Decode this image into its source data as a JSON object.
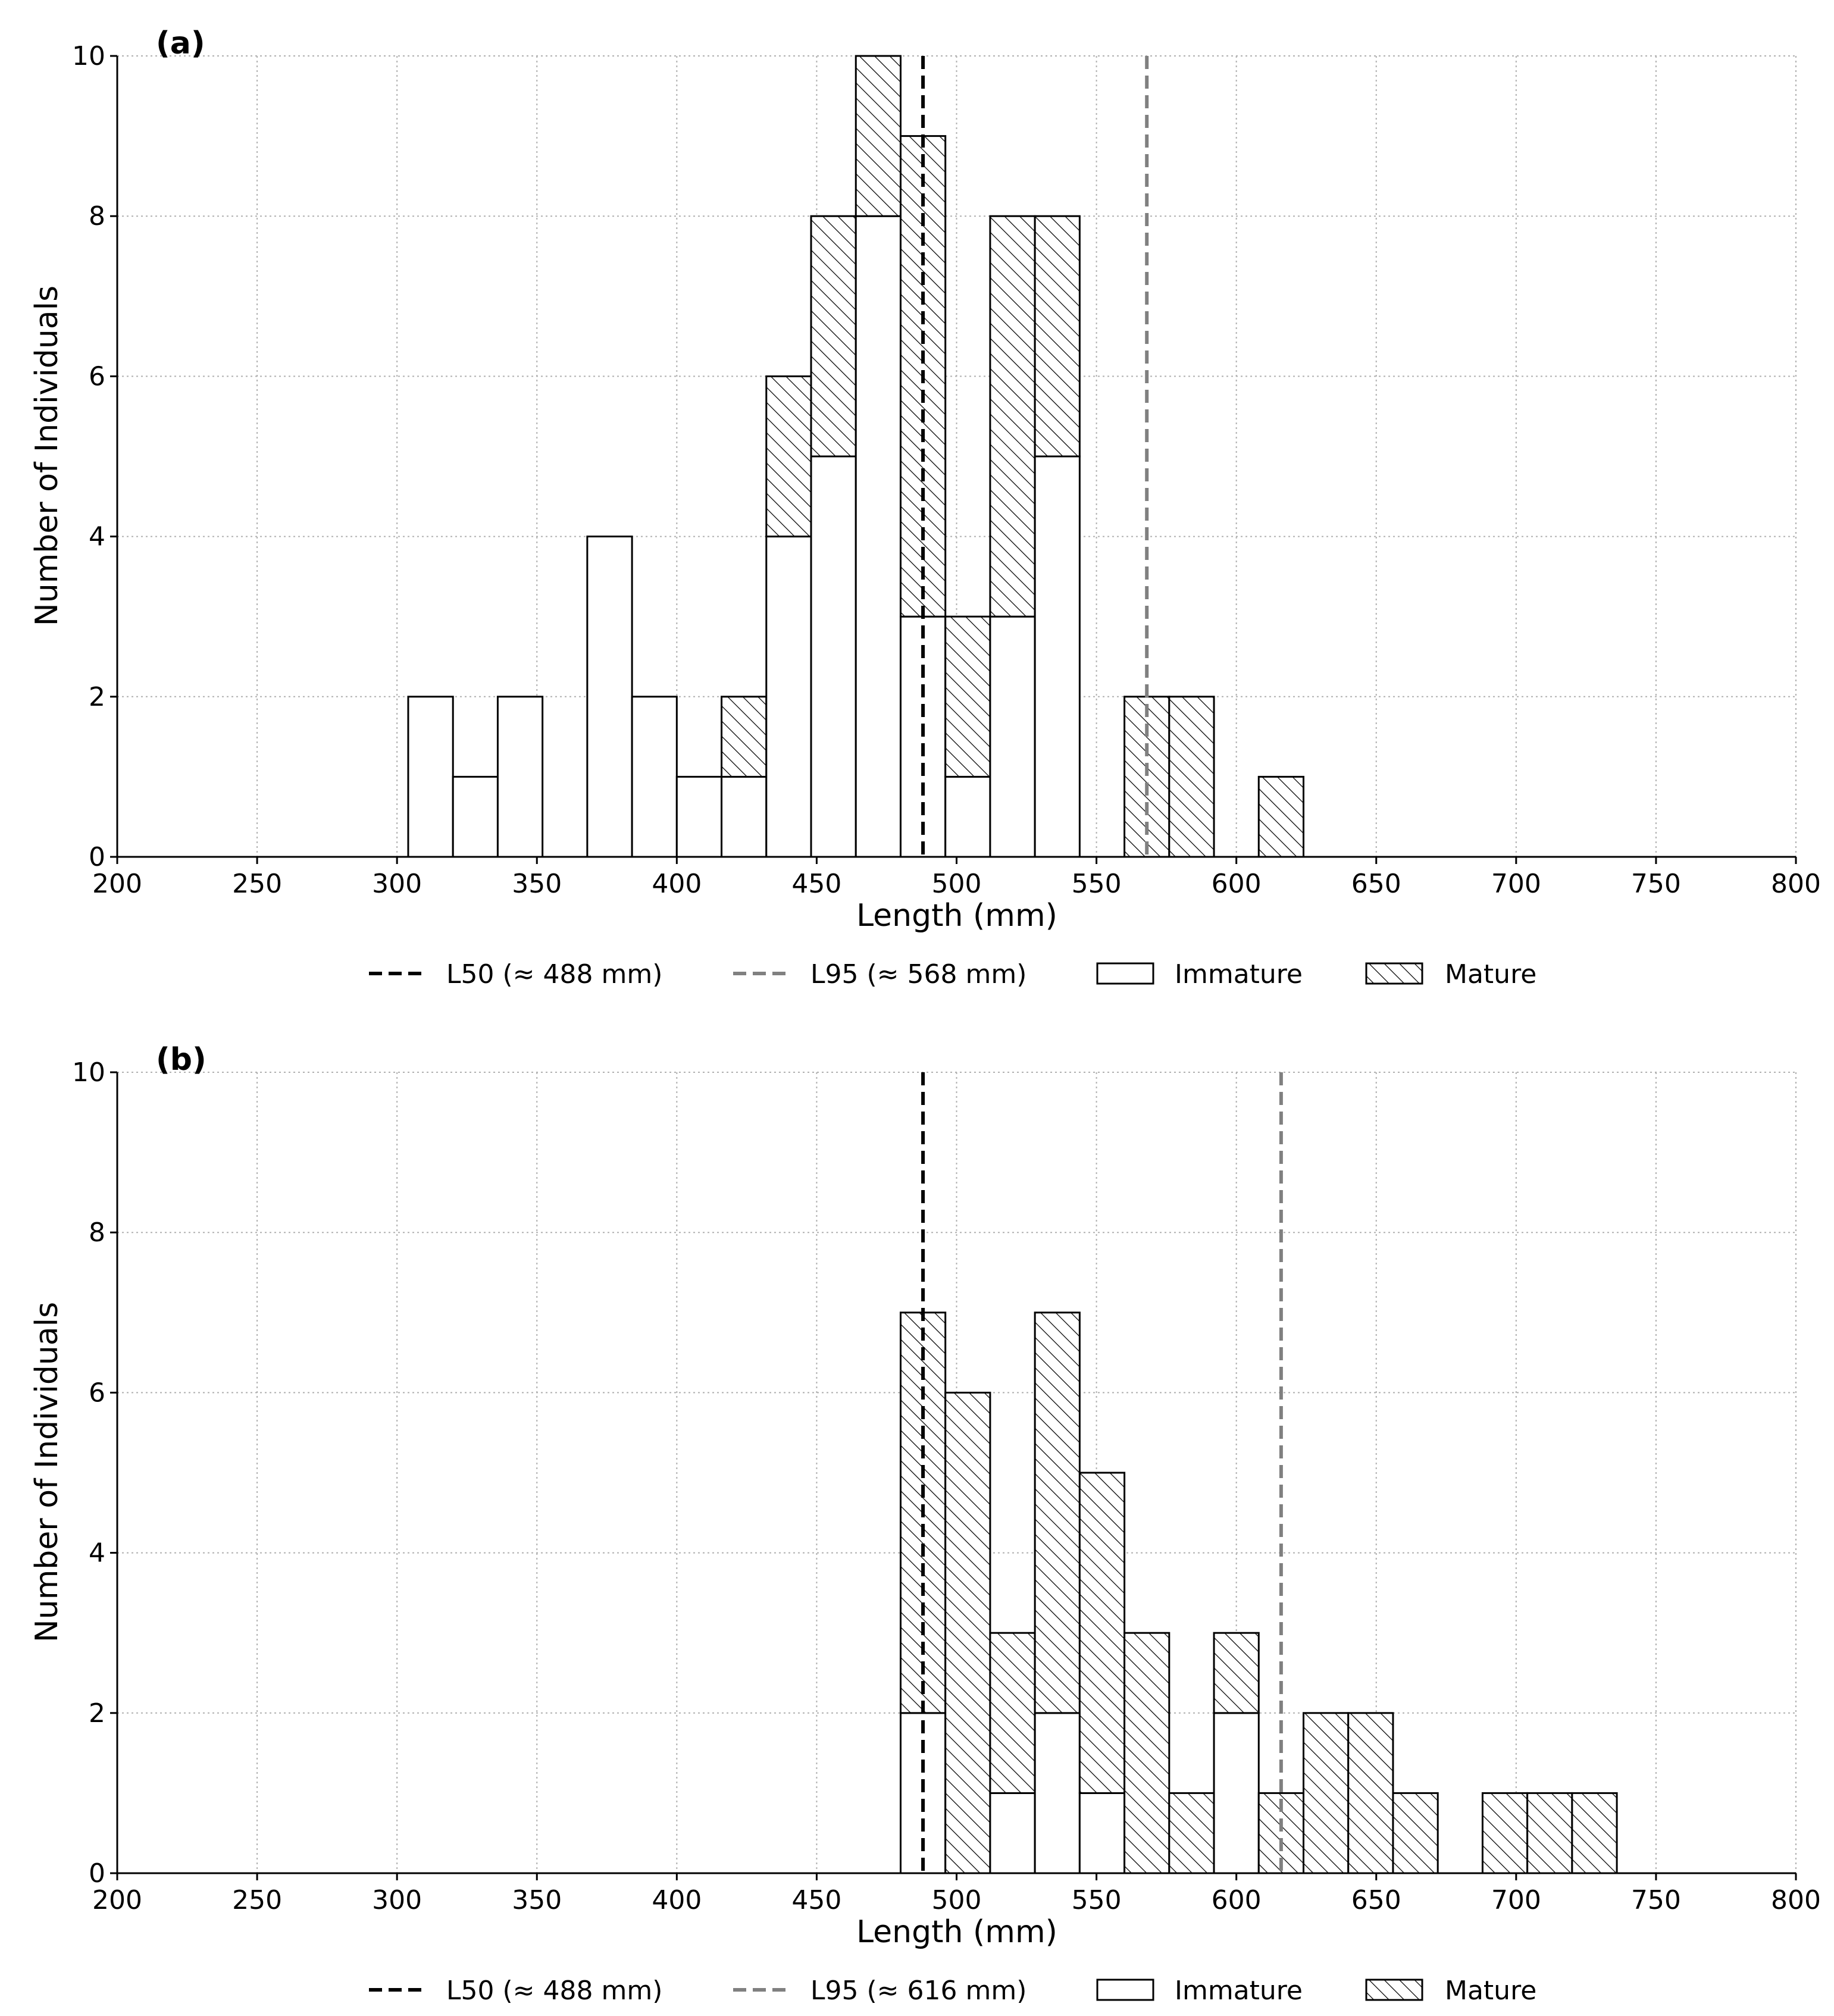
{
  "figure": {
    "colors": {
      "immature_fill": "#ffffff",
      "mature_hatch": "#000000",
      "bar_edge": "#000000",
      "l50_line": "#000000",
      "l95_line": "#808080",
      "grid": "#b0b0b0"
    }
  },
  "chart_data": [
    {
      "type": "bar",
      "panel": "(a)",
      "stacked": true,
      "xlabel": "Length (mm)",
      "ylabel": "Number of Individuals",
      "xlim": [
        200,
        800
      ],
      "ylim": [
        0,
        10
      ],
      "xticks": [
        "200",
        "250",
        "300",
        "350",
        "400",
        "450",
        "500",
        "550",
        "600",
        "650",
        "700",
        "750",
        "800"
      ],
      "yticks": [
        "0",
        "2",
        "4",
        "6",
        "8",
        "10"
      ],
      "grid": true,
      "bin_width": 16,
      "bins_start": [
        304,
        320,
        336,
        352,
        368,
        384,
        400,
        416,
        432,
        448,
        464,
        480,
        496,
        512,
        528,
        544,
        560,
        576,
        592,
        608
      ],
      "series": [
        {
          "name": "Immature",
          "hatch": false,
          "values": [
            2,
            1,
            2,
            0,
            4,
            2,
            1,
            1,
            4,
            5,
            8,
            3,
            1,
            3,
            5,
            0,
            0,
            0,
            0,
            0
          ]
        },
        {
          "name": "Mature",
          "hatch": true,
          "values": [
            0,
            0,
            0,
            0,
            0,
            0,
            0,
            1,
            2,
            3,
            2,
            6,
            2,
            5,
            3,
            0,
            2,
            2,
            0,
            1
          ]
        }
      ],
      "reference_lines": [
        {
          "name": "L50",
          "x": 488,
          "label": "L50 (≈ 488 mm)",
          "style": "dashed",
          "color": "#000000"
        },
        {
          "name": "L95",
          "x": 568,
          "label": "L95 (≈ 568 mm)",
          "style": "dashed",
          "color": "#808080"
        }
      ],
      "legend": {
        "placement": "bottom-center",
        "entries": [
          "L50 (≈ 488 mm)",
          "L95 (≈ 568 mm)",
          "Immature",
          "Mature"
        ]
      }
    },
    {
      "type": "bar",
      "panel": "(b)",
      "stacked": true,
      "xlabel": "Length (mm)",
      "ylabel": "Number of Individuals",
      "xlim": [
        200,
        800
      ],
      "ylim": [
        0,
        10
      ],
      "xticks": [
        "200",
        "250",
        "300",
        "350",
        "400",
        "450",
        "500",
        "550",
        "600",
        "650",
        "700",
        "750",
        "800"
      ],
      "yticks": [
        "0",
        "2",
        "4",
        "6",
        "8",
        "10"
      ],
      "grid": true,
      "bin_width": 16,
      "bins_start": [
        480,
        496,
        512,
        528,
        544,
        560,
        576,
        592,
        608,
        624,
        640,
        656,
        672,
        688,
        704,
        720
      ],
      "series": [
        {
          "name": "Immature",
          "hatch": false,
          "values": [
            2,
            0,
            1,
            2,
            1,
            0,
            0,
            2,
            0,
            0,
            0,
            0,
            0,
            0,
            0,
            0
          ]
        },
        {
          "name": "Mature",
          "hatch": true,
          "values": [
            5,
            6,
            2,
            5,
            4,
            3,
            1,
            1,
            1,
            2,
            2,
            1,
            0,
            1,
            1,
            1
          ]
        }
      ],
      "reference_lines": [
        {
          "name": "L50",
          "x": 488,
          "label": "L50 (≈ 488 mm)",
          "style": "dashed",
          "color": "#000000"
        },
        {
          "name": "L95",
          "x": 616,
          "label": "L95 (≈ 616 mm)",
          "style": "dashed",
          "color": "#808080"
        }
      ],
      "legend": {
        "placement": "bottom-center",
        "entries": [
          "L50 (≈ 488 mm)",
          "L95 (≈ 616 mm)",
          "Immature",
          "Mature"
        ]
      }
    }
  ]
}
